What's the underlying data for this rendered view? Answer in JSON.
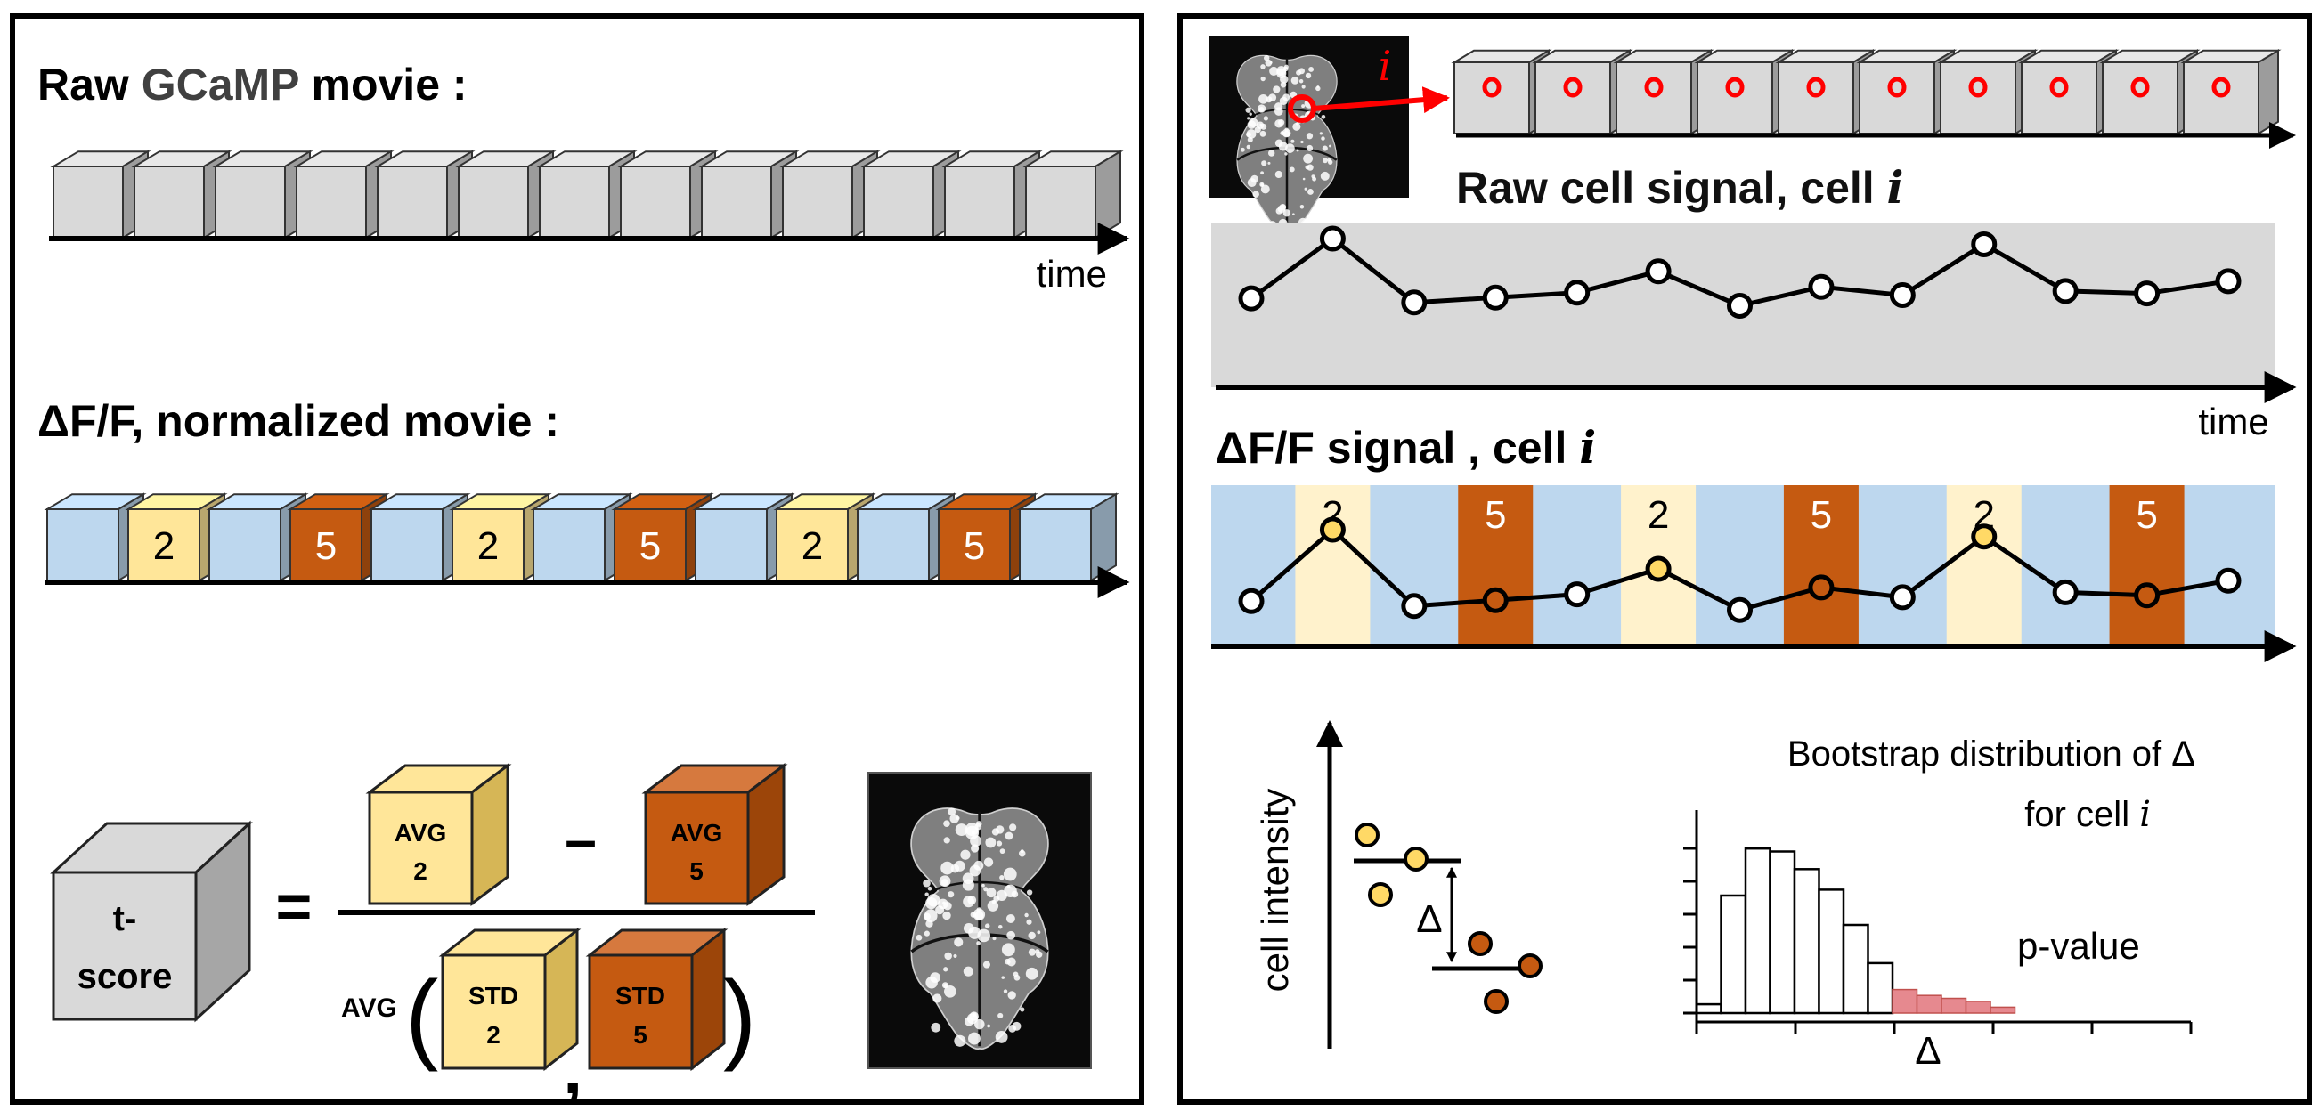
{
  "left": {
    "raw_title_a": "Raw ",
    "raw_title_b": "GCaMP",
    "raw_title_c": " movie :",
    "time_label": "time",
    "norm_title": "ΔF/F, normalized movie :",
    "sequence": [
      "",
      "2",
      "",
      "5",
      "",
      "2",
      "",
      "5",
      "",
      "2",
      "",
      "5",
      ""
    ],
    "formula": {
      "tscore_line1": "t-",
      "tscore_line2": "score",
      "equals": "=",
      "minus": "–",
      "avg_prefix": "AVG",
      "paren_open": "(",
      "paren_close": ")",
      "comma": ",",
      "avg2_line1": "AVG",
      "avg2_line2": "2",
      "avg5_line1": "AVG",
      "avg5_line2": "5",
      "std2_line1": "STD",
      "std2_line2": "2",
      "std5_line1": "STD",
      "std5_line2": "5"
    }
  },
  "right": {
    "roi_label": "i",
    "raw_signal_title": "Raw cell signal, cell ",
    "raw_signal_var": "i",
    "time_label": "time",
    "dff_title": "ΔF/F signal , cell ",
    "dff_var": "i",
    "stim_labels": [
      "2",
      "5",
      "2",
      "5",
      "2",
      "5"
    ],
    "scatter_ylabel": "cell intensity",
    "delta": "Δ",
    "hist_title_line1": "Bootstrap distribution of Δ",
    "hist_title_line2": "for cell ",
    "hist_title_var": "i",
    "pvalue": "p-value",
    "hist_xlabel": "Δ"
  },
  "signal": {
    "values": [
      0.27,
      1.0,
      0.22,
      0.28,
      0.34,
      0.6,
      0.18,
      0.41,
      0.31,
      0.93,
      0.36,
      0.33,
      0.48
    ],
    "stim": [
      0,
      2,
      0,
      5,
      0,
      2,
      0,
      5,
      0,
      2,
      0,
      5,
      0
    ]
  },
  "histogram": {
    "counts": [
      3,
      40,
      56,
      55,
      49,
      42,
      30,
      17,
      8,
      6,
      5,
      4,
      2
    ],
    "pvalue_from_bin": 8
  },
  "colors": {
    "gray_frame": "#d9d9d9",
    "blue_frame": "#bdd7ee",
    "yellow_frame": "#ffe699",
    "orange_frame": "#c55a11",
    "pale_yellow": "#fff2cc",
    "pvalue_fill": "#e6898f",
    "roi_red": "#ff0000"
  }
}
